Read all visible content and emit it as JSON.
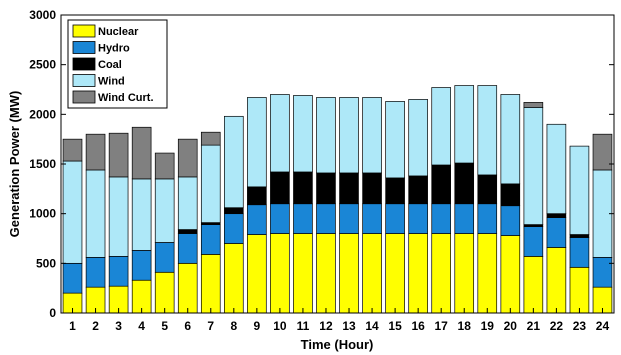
{
  "chart_data": {
    "type": "bar",
    "stacked": true,
    "xlabel": "Time (Hour)",
    "ylabel": "Generation Power (MW)",
    "ylim": [
      0,
      3000
    ],
    "yticks": [
      0,
      500,
      1000,
      1500,
      2000,
      2500,
      3000
    ],
    "grid": false,
    "legend_position": "top-left",
    "categories": [
      "1",
      "2",
      "3",
      "4",
      "5",
      "6",
      "7",
      "8",
      "9",
      "10",
      "11",
      "12",
      "13",
      "14",
      "15",
      "16",
      "17",
      "18",
      "19",
      "20",
      "21",
      "22",
      "23",
      "24"
    ],
    "series": [
      {
        "name": "Nuclear",
        "color": "#ffff00",
        "values": [
          200,
          260,
          270,
          330,
          410,
          500,
          590,
          700,
          790,
          800,
          800,
          800,
          800,
          800,
          800,
          800,
          800,
          800,
          800,
          780,
          570,
          660,
          460,
          260
        ]
      },
      {
        "name": "Hydro",
        "color": "#1a86d6",
        "values": [
          300,
          300,
          300,
          300,
          300,
          300,
          300,
          300,
          300,
          300,
          300,
          300,
          300,
          300,
          300,
          300,
          300,
          300,
          300,
          300,
          300,
          300,
          300,
          300
        ]
      },
      {
        "name": "Coal",
        "color": "#000000",
        "values": [
          0,
          0,
          0,
          0,
          0,
          40,
          20,
          60,
          180,
          320,
          320,
          310,
          310,
          310,
          260,
          280,
          390,
          410,
          290,
          220,
          20,
          40,
          30,
          0
        ]
      },
      {
        "name": "Wind",
        "color": "#aee8f8",
        "values": [
          1030,
          880,
          800,
          720,
          640,
          530,
          780,
          920,
          900,
          780,
          770,
          760,
          760,
          760,
          770,
          770,
          780,
          780,
          900,
          900,
          1180,
          900,
          890,
          880
        ]
      },
      {
        "name": "Wind Curt.",
        "color": "#808080",
        "values": [
          220,
          360,
          440,
          520,
          260,
          380,
          130,
          0,
          0,
          0,
          0,
          0,
          0,
          0,
          0,
          0,
          0,
          0,
          0,
          0,
          50,
          0,
          0,
          360
        ]
      }
    ]
  }
}
